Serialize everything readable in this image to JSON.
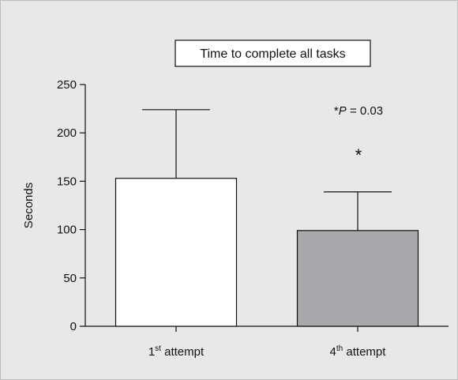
{
  "chart_data": {
    "type": "bar",
    "title": "Time to complete all tasks",
    "ylabel": "Seconds",
    "xlabel": "",
    "ylim": [
      0,
      250
    ],
    "yticks": [
      0,
      50,
      100,
      150,
      200,
      250
    ],
    "categories": [
      {
        "base": "1",
        "sup": "st",
        "rest": " attempt"
      },
      {
        "base": "4",
        "sup": "th",
        "rest": " attempt"
      }
    ],
    "values": [
      153,
      99
    ],
    "error_upper": [
      224,
      139
    ],
    "fills": [
      "#ffffff",
      "#a7a9ac"
    ],
    "significance": {
      "prefix": "*",
      "var": "P",
      "rest": " = 0.03",
      "marker": "*"
    },
    "grid": false,
    "legend": "none"
  }
}
